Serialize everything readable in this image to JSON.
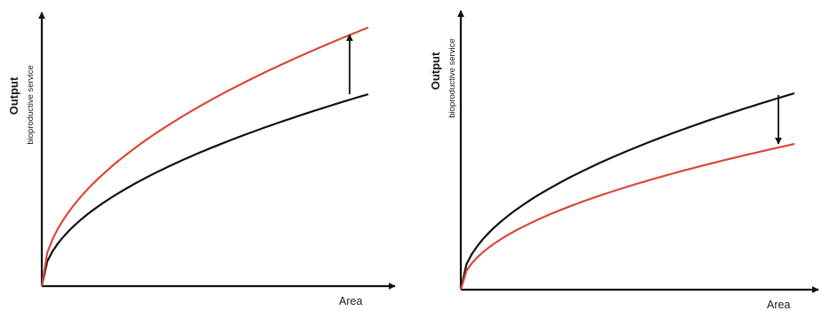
{
  "colors": {
    "baseline_curve": "#111111",
    "changed_curve": "#d9483b",
    "axis": "#111111"
  },
  "panels": [
    {
      "id": "left",
      "y_label": "Output",
      "y_sublabel": "bioproductive service",
      "x_label": "Area",
      "change_direction": "increase"
    },
    {
      "id": "right",
      "y_label": "Output",
      "y_sublabel": "bioproductive service",
      "x_label": "Area",
      "change_direction": "decrease"
    }
  ]
}
